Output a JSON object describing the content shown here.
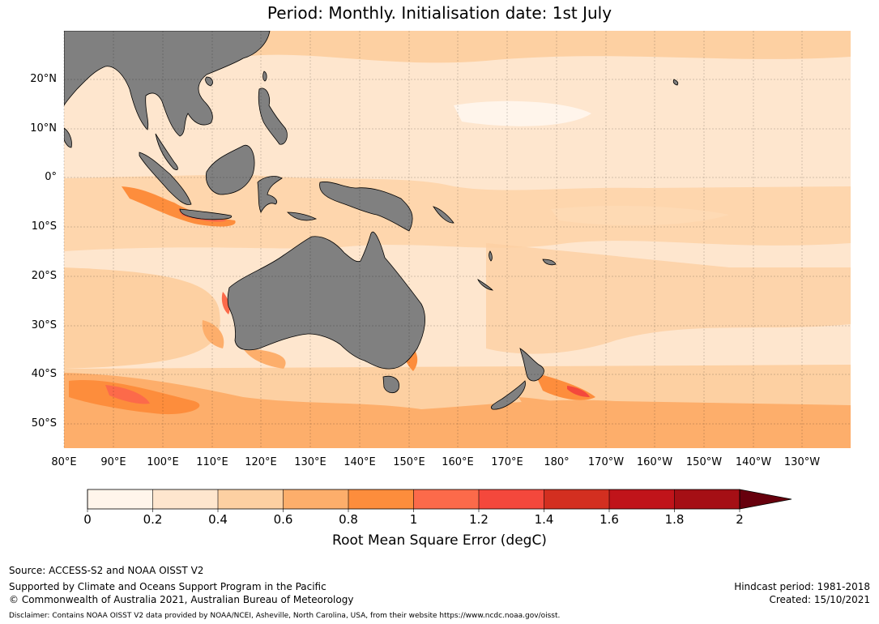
{
  "title_line1": "Period: Monthly. Initialisation date: 1st July",
  "title_line2": "Period: Monthly. Initialisation date: 1st July",
  "map": {
    "land_color": "#808080",
    "ocean_palette": [
      "#fff5eb",
      "#fee6ce",
      "#fdd0a2",
      "#fdae6b",
      "#fd8d3c",
      "#fc6a4a",
      "#f4483c",
      "#d32f20",
      "#c0141a",
      "#a50f15",
      "#67000d"
    ],
    "lat_labels": [
      "20°N",
      "10°N",
      "0°",
      "10°S",
      "20°S",
      "30°S",
      "40°S",
      "50°S"
    ],
    "lon_labels": [
      "80°E",
      "90°E",
      "100°E",
      "110°E",
      "120°E",
      "130°E",
      "140°E",
      "150°E",
      "160°E",
      "170°E",
      "180°",
      "170°W",
      "160°W",
      "150°W",
      "140°W",
      "130°W"
    ]
  },
  "colorbar": {
    "ticks": [
      "0",
      "0.2",
      "0.4",
      "0.6",
      "0.8",
      "1",
      "1.2",
      "1.4",
      "1.6",
      "1.8",
      "2"
    ],
    "colors": [
      "#fff5eb",
      "#fee6ce",
      "#fdd0a2",
      "#fdae6b",
      "#fd8d3c",
      "#fc6a4a",
      "#f4483c",
      "#d32f20",
      "#c0141a",
      "#a50f15"
    ],
    "extend_color": "#67000d",
    "label": "Root Mean Square Error (degC)"
  },
  "footer": {
    "source": "Source: ACCESS-S2 and NOAA OISST V2",
    "supported": "Supported by Climate and Oceans Support Program in the Pacific",
    "copyright": "© Commonwealth of Australia 2021, Australian Bureau of Meteorology",
    "hindcast": "Hindcast period: 1981-2018",
    "created": "Created: 15/10/2021",
    "disclaimer": "Disclaimer: Contains NOAA OISST V2 data provided by NOAA/NCEI, Asheville, North Carolina, USA, from their website https://www.ncdc.noaa.gov/oisst."
  }
}
